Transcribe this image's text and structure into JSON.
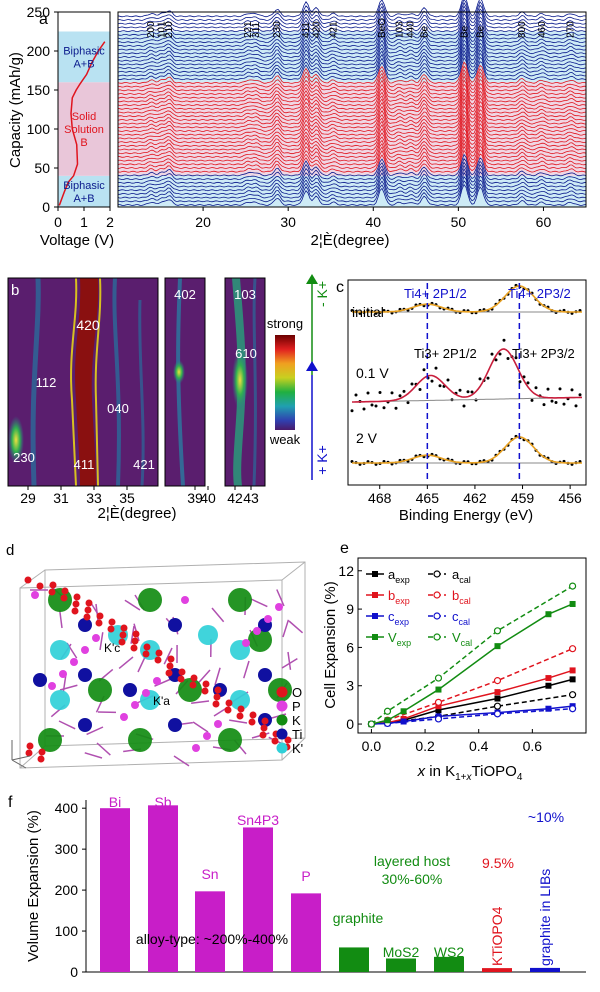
{
  "figure": {
    "colors": {
      "blue": "#0a1a8c",
      "red": "#e0141e",
      "magenta": "#c81ec8",
      "green": "#128c12",
      "darkblue": "#1010cc",
      "black": "#000000",
      "bandBlue": "#b9e2f2",
      "bandPink": "#e9c6d9"
    }
  },
  "chart_data": [
    {
      "panel": "a",
      "type": "line",
      "title": "",
      "panel_label": "a",
      "ylabel": "Capacity (mAh/g)",
      "xlabel_left": "Voltage (V)",
      "xlabel_right": "2¦È(degree)",
      "yticks": [
        "0",
        "50",
        "100",
        "150",
        "200",
        "250"
      ],
      "ylim": [
        0,
        250
      ],
      "voltage_xlim": [
        0,
        2
      ],
      "voltage_ticks": [
        "0",
        "1",
        "2"
      ],
      "two_theta_xlim": [
        10,
        65
      ],
      "two_theta_ticks": [
        "20",
        "30",
        "40",
        "50",
        "60"
      ],
      "regions": [
        {
          "label_lines": [
            "Biphasic",
            "A+B"
          ],
          "from": 0,
          "to": 40,
          "color": "bandBlue"
        },
        {
          "label_lines": [
            "Solid",
            "Solution",
            "B"
          ],
          "from": 40,
          "to": 160,
          "color": "bandPink"
        },
        {
          "label_lines": [
            "Biphasic",
            "A+B"
          ],
          "from": 160,
          "to": 225,
          "color": "bandBlue"
        }
      ],
      "voltage_curve": {
        "x": [
          0.05,
          0.25,
          0.4,
          0.6,
          0.75,
          0.72,
          0.55,
          0.5,
          0.55,
          0.7,
          0.85,
          1.1,
          1.3,
          1.55,
          1.8
        ],
        "y": [
          2,
          20,
          32,
          40,
          55,
          80,
          100,
          120,
          140,
          150,
          158,
          170,
          185,
          200,
          212
        ]
      },
      "reflections": [
        {
          "label": "200",
          "pos": 13.9
        },
        {
          "label": "101",
          "pos": 15.1
        },
        {
          "label": "210",
          "pos": 16.0
        },
        {
          "label": "221",
          "pos": 25.3
        },
        {
          "label": "311",
          "pos": 26.2
        },
        {
          "label": "230",
          "pos": 28.7
        },
        {
          "label": "411",
          "pos": 32.1
        },
        {
          "label": "420",
          "pos": 33.3
        },
        {
          "label": "421",
          "pos": 35.3
        },
        {
          "label": "BeO",
          "pos": 41.0
        },
        {
          "label": "103",
          "pos": 43.1
        },
        {
          "label": "440",
          "pos": 44.4
        },
        {
          "label": "Be",
          "pos": 46.0
        },
        {
          "label": "Be",
          "pos": 50.7
        },
        {
          "label": "Be",
          "pos": 52.6
        },
        {
          "label": "800",
          "pos": 57.5
        },
        {
          "label": "460",
          "pos": 59.8
        },
        {
          "label": "270",
          "pos": 63.2
        }
      ]
    },
    {
      "panel": "b",
      "type": "heatmap",
      "panel_label": "b",
      "xlabel": "2¦È(degree)",
      "xticks": [
        "29",
        "31",
        "33",
        "35",
        "39",
        "40",
        "42",
        "43"
      ],
      "peak_labels": [
        "420",
        "112",
        "040",
        "230",
        "411",
        "421",
        "402",
        "103",
        "610"
      ],
      "colorbar": {
        "high": "strong",
        "low": "weak"
      },
      "axis_annotations": {
        "top": "- K+",
        "bottom": "+ K+"
      }
    },
    {
      "panel": "c",
      "type": "line",
      "panel_label": "c",
      "xlabel": "Binding Energy (eV)",
      "xlim": [
        470,
        455
      ],
      "xticks": [
        "468",
        "465",
        "462",
        "459",
        "456"
      ],
      "series": [
        {
          "name": "initial",
          "peaks": [
            465.0,
            459.2
          ],
          "heights": [
            0.3,
            1.0
          ]
        },
        {
          "name": "0.1 V",
          "peaks": [
            464.8,
            460.2
          ],
          "heights": [
            0.5,
            1.0
          ]
        },
        {
          "name": "2 V",
          "peaks": [
            465.0,
            459.2
          ],
          "heights": [
            0.3,
            1.0
          ]
        }
      ],
      "labels": {
        "ti4_2p12": "Ti4+ 2P1/2",
        "ti4_2p32": "Ti4+ 2P3/2",
        "ti3_2p12": "Ti3+ 2P1/2",
        "ti3_2p32": "Ti3+ 2P3/2"
      },
      "dashed_lines": [
        465.0,
        459.2
      ]
    },
    {
      "panel": "e",
      "type": "line",
      "panel_label": "e",
      "ylabel": "Cell Expansion (%)",
      "xlabel": "x in K1+xTiOPO4",
      "xlim": [
        -0.05,
        0.8
      ],
      "ylim": [
        -0.7,
        13
      ],
      "xticks": [
        0.0,
        0.2,
        0.4,
        0.6
      ],
      "yticks": [
        0,
        3,
        6,
        9,
        12
      ],
      "series": [
        {
          "name": "a_exp",
          "color": "black",
          "dashed": false,
          "open": false,
          "x": [
            0.0,
            0.06,
            0.12,
            0.25,
            0.47,
            0.66,
            0.75
          ],
          "y": [
            0.0,
            0.1,
            0.3,
            1.1,
            2.0,
            3.0,
            3.5
          ]
        },
        {
          "name": "a_cal",
          "color": "black",
          "dashed": true,
          "open": true,
          "x": [
            0.0,
            0.06,
            0.25,
            0.47,
            0.75
          ],
          "y": [
            0.0,
            0.1,
            0.6,
            1.4,
            2.3
          ]
        },
        {
          "name": "b_exp",
          "color": "red",
          "dashed": false,
          "open": false,
          "x": [
            0.0,
            0.06,
            0.12,
            0.25,
            0.47,
            0.66,
            0.75
          ],
          "y": [
            0.0,
            0.1,
            0.4,
            1.4,
            2.5,
            3.6,
            4.2
          ]
        },
        {
          "name": "b_cal",
          "color": "red",
          "dashed": true,
          "open": true,
          "x": [
            0.0,
            0.06,
            0.25,
            0.47,
            0.75
          ],
          "y": [
            0.0,
            0.3,
            1.7,
            3.4,
            5.9
          ]
        },
        {
          "name": "c_exp",
          "color": "darkblue",
          "dashed": false,
          "open": false,
          "x": [
            0.0,
            0.06,
            0.12,
            0.25,
            0.47,
            0.66,
            0.75
          ],
          "y": [
            0.0,
            0.05,
            0.2,
            0.6,
            0.9,
            1.2,
            1.4
          ]
        },
        {
          "name": "c_cal",
          "color": "darkblue",
          "dashed": true,
          "open": true,
          "x": [
            0.0,
            0.06,
            0.25,
            0.47,
            0.75
          ],
          "y": [
            0.0,
            0.05,
            0.4,
            0.8,
            1.2
          ]
        },
        {
          "name": "V_exp",
          "color": "green",
          "dashed": false,
          "open": false,
          "x": [
            0.0,
            0.06,
            0.12,
            0.25,
            0.47,
            0.66,
            0.75
          ],
          "y": [
            0.0,
            0.3,
            1.0,
            2.7,
            6.1,
            8.6,
            9.4
          ]
        },
        {
          "name": "V_cal",
          "color": "green",
          "dashed": true,
          "open": true,
          "x": [
            0.0,
            0.06,
            0.25,
            0.47,
            0.75
          ],
          "y": [
            0.0,
            1.0,
            3.6,
            7.3,
            10.8
          ]
        }
      ],
      "legend": [
        {
          "exp": "a",
          "cal": "a",
          "color": "black"
        },
        {
          "exp": "b",
          "cal": "b",
          "color": "red"
        },
        {
          "exp": "c",
          "cal": "c",
          "color": "darkblue"
        },
        {
          "exp": "V",
          "cal": "V",
          "color": "green"
        }
      ]
    },
    {
      "panel": "f",
      "type": "bar",
      "panel_label": "f",
      "ylabel": "Volume Expansion (%)",
      "ylim": [
        0,
        420
      ],
      "yticks": [
        0,
        100,
        200,
        300,
        400
      ],
      "categories": [
        "Bi",
        "Sb",
        "Sn",
        "Sn4P3",
        "P",
        "graphite",
        "MoS2",
        "WS2",
        "KTiOPO4",
        "graphite in LIBs"
      ],
      "values": [
        400,
        407,
        197,
        353,
        192,
        60,
        33,
        37,
        9.5,
        10
      ],
      "colors": [
        "magenta",
        "magenta",
        "magenta",
        "magenta",
        "magenta",
        "green",
        "green",
        "green",
        "red",
        "darkblue"
      ],
      "annotations": {
        "alloy": "alloy-type: ~200%-400%",
        "layered_1": "layered host",
        "layered_2": "30%-60%",
        "ktp_pct": "9.5%",
        "libs_pct": "~10%"
      }
    }
  ],
  "panel_d": {
    "label": "d",
    "site_labels": [
      "K'c",
      "K'a"
    ],
    "legend": [
      "O",
      "P",
      "K",
      "Ti",
      "K'"
    ],
    "legend_colors": [
      "#e0141e",
      "#e040e0",
      "#128c12",
      "#1010a0",
      "#30d0d8"
    ]
  }
}
